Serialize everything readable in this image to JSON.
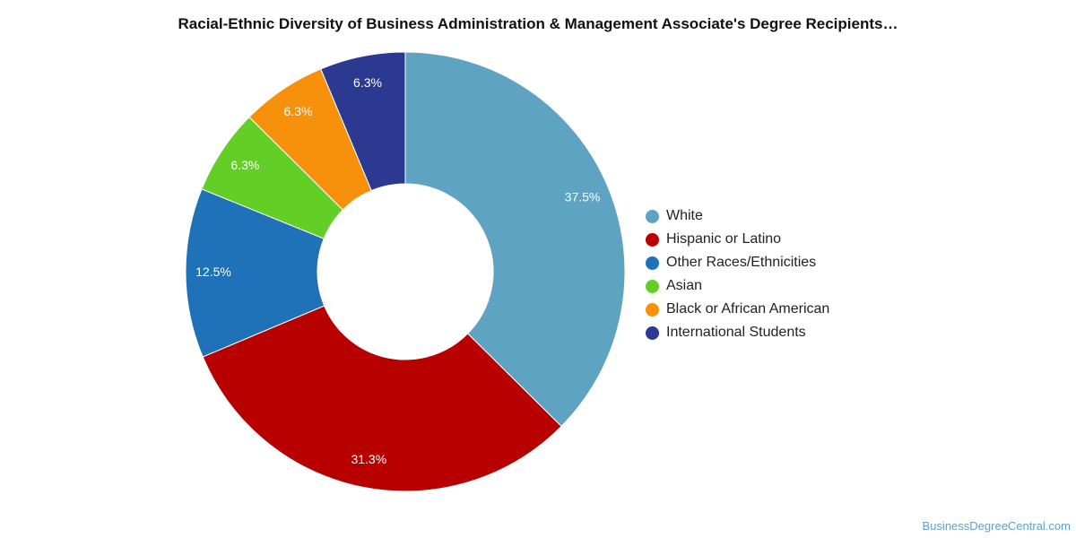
{
  "chart_data": {
    "type": "pie",
    "variant": "donut",
    "title": "Racial-Ethnic Diversity of Business Administration & Management Associate's Degree Recipients…",
    "categories": [
      "White",
      "Hispanic or Latino",
      "Other Races/Ethnicities",
      "Asian",
      "Black or African American",
      "International Students"
    ],
    "values": [
      37.5,
      31.3,
      12.5,
      6.3,
      6.3,
      6.3
    ],
    "labels": [
      "37.5%",
      "31.3%",
      "12.5%",
      "6.3%",
      "6.3%",
      "6.3%"
    ],
    "colors": [
      "#5ea3c1",
      "#b80000",
      "#1f72b8",
      "#63cf26",
      "#f7900a",
      "#2b3990"
    ],
    "legend": "right"
  },
  "watermark": "BusinessDegreeCentral.com"
}
